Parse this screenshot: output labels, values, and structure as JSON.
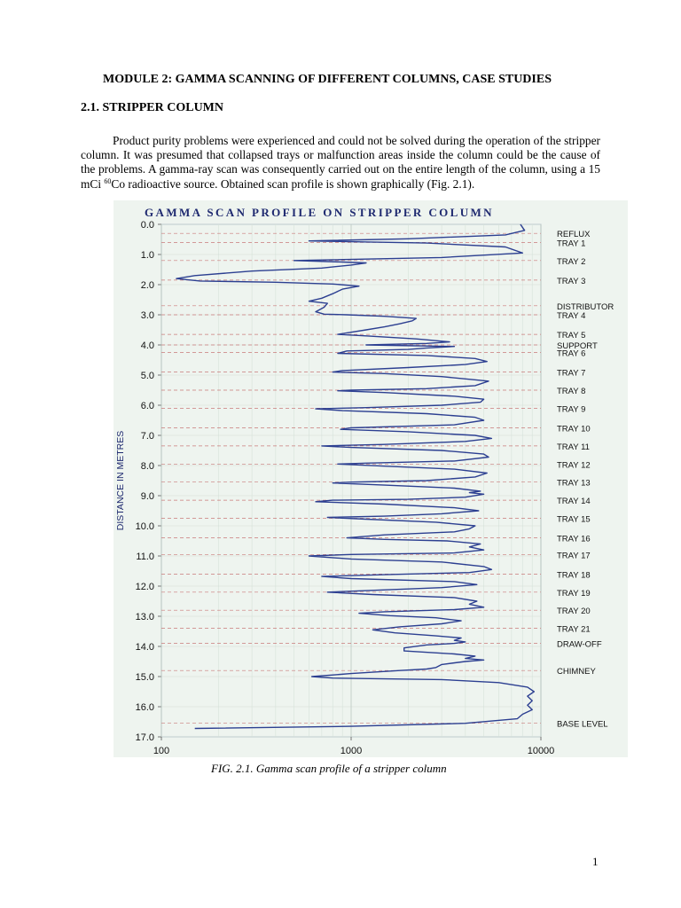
{
  "document": {
    "module_title": "MODULE 2: GAMMA SCANNING OF DIFFERENT COLUMNS, CASE STUDIES",
    "section_heading": "2.1. STRIPPER COLUMN",
    "paragraph": {
      "text_before_superscript": "Product purity problems were experienced and could not be solved during the operation of the stripper column. It was presumed that collapsed trays or malfunction areas inside the column could be the cause of the problems. A gamma-ray scan was consequently carried out on the entire length of the column, using a 15 mCi ",
      "superscript": "60",
      "text_after_superscript": "Co radioactive source. Obtained scan profile is shown graphically (Fig. 2.1)."
    },
    "figure_caption": "FIG. 2.1. Gamma scan profile of a stripper column",
    "page_number": "1"
  },
  "chart_data": {
    "type": "line",
    "title": "GAMMA SCAN PROFILE ON STRIPPER COLUMN",
    "ylabel": "DISTANCE IN METRES",
    "xlabel": "",
    "x_scale": "log",
    "xlim": [
      100,
      10000
    ],
    "ylim": [
      0,
      17
    ],
    "y_inverted": true,
    "x_tick_labels": [
      "100",
      "1000",
      "10000"
    ],
    "y_tick_labels": [
      "0.0",
      "1.0",
      "2.0",
      "3.0",
      "4.0",
      "5.0",
      "6.0",
      "7.0",
      "8.0",
      "9.0",
      "10.0",
      "11.0",
      "12.0",
      "13.0",
      "14.0",
      "15.0",
      "16.0",
      "17.0"
    ],
    "grid": true,
    "line_color": "#2c3f91",
    "level_line_color": "#c97a7a",
    "background_color": "#eef4ef",
    "annotations": [
      {
        "label": "REFLUX",
        "depth": 0.3
      },
      {
        "label": "TRAY 1",
        "depth": 0.6
      },
      {
        "label": "TRAY 2",
        "depth": 1.2
      },
      {
        "label": "TRAY 3",
        "depth": 1.85
      },
      {
        "label": "DISTRIBUTOR",
        "depth": 2.7
      },
      {
        "label": "TRAY 4",
        "depth": 3.0
      },
      {
        "label": "TRAY 5",
        "depth": 3.65
      },
      {
        "label": "SUPPORT",
        "depth": 4.0
      },
      {
        "label": "TRAY 6",
        "depth": 4.25
      },
      {
        "label": "TRAY 7",
        "depth": 4.9
      },
      {
        "label": "TRAY 8",
        "depth": 5.5
      },
      {
        "label": "TRAY 9",
        "depth": 6.1
      },
      {
        "label": "TRAY 10",
        "depth": 6.75
      },
      {
        "label": "TRAY 11",
        "depth": 7.35
      },
      {
        "label": "TRAY 12",
        "depth": 7.95
      },
      {
        "label": "TRAY 13",
        "depth": 8.55
      },
      {
        "label": "TRAY 14",
        "depth": 9.15
      },
      {
        "label": "TRAY 15",
        "depth": 9.75
      },
      {
        "label": "TRAY 16",
        "depth": 10.4
      },
      {
        "label": "TRAY 17",
        "depth": 10.95
      },
      {
        "label": "TRAY 18",
        "depth": 11.6
      },
      {
        "label": "TRAY 19",
        "depth": 12.2
      },
      {
        "label": "TRAY 20",
        "depth": 12.8
      },
      {
        "label": "TRAY 21",
        "depth": 13.4
      },
      {
        "label": "DRAW-OFF",
        "depth": 13.9
      },
      {
        "label": "CHIMNEY",
        "depth": 14.8
      },
      {
        "label": "BASE LEVEL",
        "depth": 16.55
      }
    ],
    "series": [
      {
        "points": [
          [
            7800,
            0.0
          ],
          [
            8200,
            0.2
          ],
          [
            6500,
            0.35
          ],
          [
            2000,
            0.48
          ],
          [
            600,
            0.55
          ],
          [
            2500,
            0.62
          ],
          [
            6500,
            0.75
          ],
          [
            8000,
            0.95
          ],
          [
            3000,
            1.1
          ],
          [
            500,
            1.2
          ],
          [
            900,
            1.25
          ],
          [
            1200,
            1.28
          ],
          [
            1000,
            1.35
          ],
          [
            700,
            1.45
          ],
          [
            300,
            1.55
          ],
          [
            150,
            1.7
          ],
          [
            120,
            1.8
          ],
          [
            160,
            1.88
          ],
          [
            400,
            1.92
          ],
          [
            800,
            1.98
          ],
          [
            1100,
            2.05
          ],
          [
            900,
            2.15
          ],
          [
            800,
            2.3
          ],
          [
            700,
            2.45
          ],
          [
            600,
            2.55
          ],
          [
            750,
            2.62
          ],
          [
            720,
            2.75
          ],
          [
            650,
            2.9
          ],
          [
            720,
            2.98
          ],
          [
            950,
            3.0
          ],
          [
            1500,
            3.05
          ],
          [
            2200,
            3.12
          ],
          [
            2100,
            3.2
          ],
          [
            1800,
            3.3
          ],
          [
            1500,
            3.4
          ],
          [
            1200,
            3.5
          ],
          [
            950,
            3.6
          ],
          [
            850,
            3.65
          ],
          [
            1200,
            3.7
          ],
          [
            2200,
            3.8
          ],
          [
            3300,
            3.9
          ],
          [
            2500,
            3.95
          ],
          [
            1200,
            4.0
          ],
          [
            3500,
            4.05
          ],
          [
            2500,
            4.1
          ],
          [
            2000,
            4.15
          ],
          [
            950,
            4.2
          ],
          [
            850,
            4.28
          ],
          [
            2500,
            4.35
          ],
          [
            4500,
            4.45
          ],
          [
            5200,
            4.55
          ],
          [
            4000,
            4.65
          ],
          [
            2000,
            4.75
          ],
          [
            900,
            4.85
          ],
          [
            800,
            4.9
          ],
          [
            1500,
            4.95
          ],
          [
            3000,
            5.05
          ],
          [
            5300,
            5.2
          ],
          [
            4500,
            5.35
          ],
          [
            2500,
            5.45
          ],
          [
            1000,
            5.5
          ],
          [
            850,
            5.52
          ],
          [
            1500,
            5.58
          ],
          [
            3500,
            5.7
          ],
          [
            5000,
            5.8
          ],
          [
            4800,
            5.9
          ],
          [
            3000,
            6.0
          ],
          [
            1200,
            6.08
          ],
          [
            650,
            6.12
          ],
          [
            900,
            6.18
          ],
          [
            2500,
            6.28
          ],
          [
            4500,
            6.4
          ],
          [
            5000,
            6.5
          ],
          [
            3500,
            6.65
          ],
          [
            1000,
            6.75
          ],
          [
            880,
            6.8
          ],
          [
            2000,
            6.88
          ],
          [
            4500,
            7.0
          ],
          [
            5500,
            7.1
          ],
          [
            4000,
            7.2
          ],
          [
            1500,
            7.3
          ],
          [
            700,
            7.35
          ],
          [
            1000,
            7.4
          ],
          [
            3000,
            7.5
          ],
          [
            5000,
            7.62
          ],
          [
            5300,
            7.72
          ],
          [
            3500,
            7.85
          ],
          [
            1200,
            7.92
          ],
          [
            850,
            7.95
          ],
          [
            1500,
            8.02
          ],
          [
            3500,
            8.12
          ],
          [
            5200,
            8.25
          ],
          [
            4500,
            8.38
          ],
          [
            2500,
            8.5
          ],
          [
            1000,
            8.55
          ],
          [
            800,
            8.58
          ],
          [
            1500,
            8.65
          ],
          [
            3500,
            8.75
          ],
          [
            4800,
            8.85
          ],
          [
            4200,
            8.9
          ],
          [
            5000,
            8.95
          ],
          [
            4000,
            9.05
          ],
          [
            2000,
            9.12
          ],
          [
            800,
            9.15
          ],
          [
            650,
            9.2
          ],
          [
            1500,
            9.28
          ],
          [
            3500,
            9.4
          ],
          [
            4700,
            9.5
          ],
          [
            3000,
            9.6
          ],
          [
            1500,
            9.68
          ],
          [
            750,
            9.72
          ],
          [
            1200,
            9.78
          ],
          [
            2800,
            9.88
          ],
          [
            4500,
            10.0
          ],
          [
            4200,
            10.1
          ],
          [
            3500,
            10.2
          ],
          [
            1500,
            10.3
          ],
          [
            950,
            10.4
          ],
          [
            1500,
            10.45
          ],
          [
            3200,
            10.5
          ],
          [
            4800,
            10.6
          ],
          [
            4200,
            10.7
          ],
          [
            5000,
            10.8
          ],
          [
            3500,
            10.9
          ],
          [
            1000,
            10.95
          ],
          [
            600,
            11.0
          ],
          [
            1000,
            11.1
          ],
          [
            3000,
            11.2
          ],
          [
            5000,
            11.35
          ],
          [
            5500,
            11.45
          ],
          [
            4200,
            11.55
          ],
          [
            1500,
            11.62
          ],
          [
            700,
            11.68
          ],
          [
            1000,
            11.75
          ],
          [
            3500,
            11.85
          ],
          [
            4600,
            11.95
          ],
          [
            3000,
            12.05
          ],
          [
            1200,
            12.15
          ],
          [
            750,
            12.2
          ],
          [
            1300,
            12.28
          ],
          [
            3500,
            12.38
          ],
          [
            4600,
            12.5
          ],
          [
            4200,
            12.6
          ],
          [
            5000,
            12.7
          ],
          [
            3500,
            12.78
          ],
          [
            1500,
            12.85
          ],
          [
            1100,
            12.9
          ],
          [
            1600,
            12.98
          ],
          [
            2800,
            13.05
          ],
          [
            3800,
            13.15
          ],
          [
            3000,
            13.25
          ],
          [
            1800,
            13.35
          ],
          [
            1300,
            13.45
          ],
          [
            1700,
            13.55
          ],
          [
            2800,
            13.65
          ],
          [
            3800,
            13.72
          ],
          [
            3500,
            13.8
          ],
          [
            4000,
            13.85
          ],
          [
            3500,
            13.9
          ],
          [
            2500,
            13.95
          ],
          [
            1900,
            14.05
          ],
          [
            1900,
            14.15
          ],
          [
            3500,
            14.25
          ],
          [
            4500,
            14.32
          ],
          [
            4000,
            14.4
          ],
          [
            5000,
            14.45
          ],
          [
            4000,
            14.5
          ],
          [
            3000,
            14.6
          ],
          [
            2800,
            14.7
          ],
          [
            2500,
            14.75
          ],
          [
            1800,
            14.8
          ],
          [
            1000,
            14.9
          ],
          [
            620,
            15.0
          ],
          [
            800,
            15.05
          ],
          [
            3000,
            15.1
          ],
          [
            6000,
            15.2
          ],
          [
            8500,
            15.35
          ],
          [
            9200,
            15.5
          ],
          [
            8500,
            15.65
          ],
          [
            9000,
            15.8
          ],
          [
            8500,
            15.95
          ],
          [
            9000,
            16.1
          ],
          [
            8000,
            16.25
          ],
          [
            7500,
            16.4
          ],
          [
            4000,
            16.55
          ],
          [
            1000,
            16.65
          ],
          [
            150,
            16.72
          ]
        ]
      }
    ]
  }
}
